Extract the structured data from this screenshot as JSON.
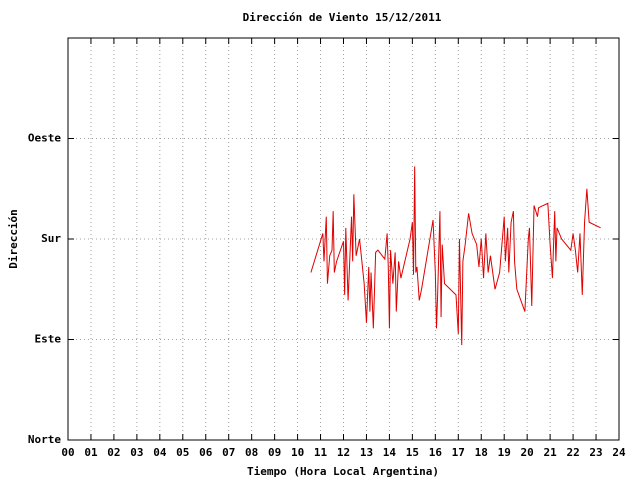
{
  "chart_data": {
    "type": "line",
    "title": "Dirección de Viento 15/12/2011",
    "x_label": "Tiempo (Hora Local Argentina)",
    "y_label": "Dirección",
    "color": "#e00000",
    "grid": true,
    "xlim": [
      0,
      24
    ],
    "ylim": [
      0,
      360
    ],
    "xticks": [
      {
        "value": 0,
        "label": "00"
      },
      {
        "value": 1,
        "label": "01"
      },
      {
        "value": 2,
        "label": "02"
      },
      {
        "value": 3,
        "label": "03"
      },
      {
        "value": 4,
        "label": "04"
      },
      {
        "value": 5,
        "label": "05"
      },
      {
        "value": 6,
        "label": "06"
      },
      {
        "value": 7,
        "label": "07"
      },
      {
        "value": 8,
        "label": "08"
      },
      {
        "value": 9,
        "label": "09"
      },
      10,
      11,
      12,
      13,
      14,
      15,
      16,
      17,
      18,
      19,
      20,
      21,
      22,
      23,
      24
    ],
    "yticks": [
      {
        "value": 0,
        "label": "Norte"
      },
      {
        "value": 90,
        "label": "Este"
      },
      {
        "value": 180,
        "label": "Sur"
      },
      {
        "value": 270,
        "label": "Oeste"
      }
    ],
    "x": [
      10.58,
      11.1,
      11.15,
      11.25,
      11.3,
      11.4,
      11.5,
      11.55,
      11.6,
      11.7,
      12.0,
      12.05,
      12.1,
      12.2,
      12.3,
      12.35,
      12.4,
      12.45,
      12.55,
      12.7,
      12.9,
      13.0,
      13.05,
      13.1,
      13.15,
      13.2,
      13.3,
      13.4,
      13.5,
      13.8,
      13.9,
      13.95,
      14.0,
      14.05,
      14.15,
      14.25,
      14.3,
      14.4,
      14.5,
      14.9,
      15.0,
      15.05,
      15.1,
      15.15,
      15.2,
      15.3,
      15.4,
      15.9,
      16.0,
      16.05,
      16.1,
      16.2,
      16.25,
      16.3,
      16.4,
      16.5,
      16.9,
      17.0,
      17.05,
      17.15,
      17.2,
      17.3,
      17.45,
      17.6,
      17.8,
      17.9,
      18.0,
      18.1,
      18.2,
      18.3,
      18.4,
      18.6,
      18.8,
      19.0,
      19.05,
      19.15,
      19.2,
      19.3,
      19.4,
      19.45,
      19.55,
      19.9,
      20.05,
      20.1,
      20.2,
      20.3,
      20.45,
      20.5,
      20.9,
      21.0,
      21.1,
      21.2,
      21.25,
      21.3,
      21.5,
      21.9,
      22.0,
      22.1,
      22.2,
      22.3,
      22.4,
      22.5,
      22.6,
      22.7,
      23.2
    ],
    "values": [
      150,
      185,
      160,
      200,
      140,
      165,
      170,
      205,
      150,
      160,
      178,
      130,
      190,
      125,
      175,
      200,
      160,
      220,
      165,
      180,
      140,
      105,
      130,
      155,
      115,
      150,
      100,
      168,
      170,
      162,
      185,
      155,
      100,
      170,
      140,
      168,
      115,
      160,
      145,
      180,
      195,
      148,
      245,
      150,
      155,
      125,
      135,
      197,
      150,
      100,
      130,
      205,
      110,
      175,
      140,
      138,
      130,
      95,
      180,
      85,
      160,
      175,
      203,
      185,
      175,
      155,
      180,
      145,
      185,
      150,
      165,
      135,
      150,
      200,
      160,
      190,
      150,
      195,
      205,
      160,
      135,
      115,
      180,
      190,
      120,
      210,
      200,
      208,
      212,
      175,
      145,
      205,
      160,
      190,
      180,
      170,
      185,
      170,
      150,
      185,
      130,
      195,
      225,
      195,
      190
    ]
  }
}
